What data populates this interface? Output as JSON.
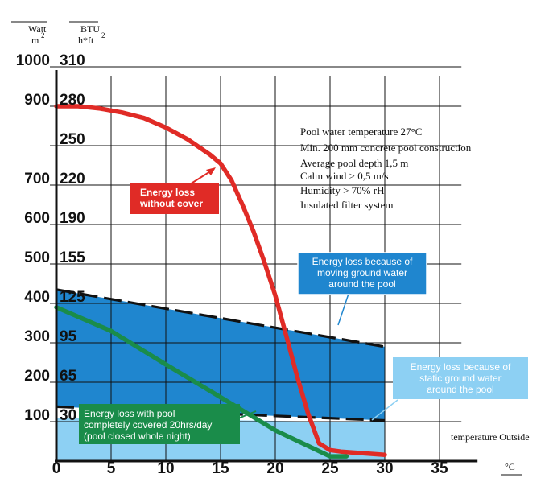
{
  "chart_data": {
    "type": "line",
    "xlabel": "temperature Outside",
    "x_unit": "°C",
    "watt_unit": {
      "top": "Watt",
      "bottom": "m",
      "sup": "2"
    },
    "btu_unit": {
      "top": "BTU",
      "bottom": "h*ft",
      "sup": "2"
    },
    "x_ticks": [
      "0",
      "5",
      "10",
      "15",
      "20",
      "25",
      "30",
      "35"
    ],
    "watt_ticks": [
      {
        "value": 1000,
        "label": "1000"
      },
      {
        "value": 900,
        "label": "900"
      },
      {
        "value": 700,
        "label": "700"
      },
      {
        "value": 600,
        "label": "600"
      },
      {
        "value": 500,
        "label": "500"
      },
      {
        "value": 400,
        "label": "400"
      },
      {
        "value": 300,
        "label": "300"
      },
      {
        "value": 200,
        "label": "200"
      },
      {
        "value": 100,
        "label": "100"
      }
    ],
    "btu_ticks": [
      {
        "value": 310,
        "label": "310"
      },
      {
        "value": 280,
        "label": "280"
      },
      {
        "value": 250,
        "label": "250"
      },
      {
        "value": 220,
        "label": "220"
      },
      {
        "value": 190,
        "label": "190"
      },
      {
        "value": 155,
        "label": "155"
      },
      {
        "value": 125,
        "label": "125"
      },
      {
        "value": 95,
        "label": "95"
      },
      {
        "value": 65,
        "label": "65"
      },
      {
        "value": 30,
        "label": "30"
      }
    ],
    "xlim": [
      0,
      37
    ],
    "ylim": [
      0,
      1000
    ],
    "grid": true,
    "series": [
      {
        "name": "Energy loss without cover",
        "color": "#e02b26",
        "x": [
          0,
          2,
          4,
          6,
          8,
          10,
          12,
          14,
          15,
          16,
          17,
          18,
          19,
          20,
          21,
          22,
          23,
          24,
          25,
          26,
          27,
          28,
          29,
          30
        ],
        "y": [
          900,
          900,
          894,
          884,
          870,
          846,
          816,
          778,
          755,
          712,
          650,
          583,
          505,
          420,
          318,
          214,
          120,
          45,
          28,
          24,
          22,
          20,
          18,
          16
        ]
      },
      {
        "name": "Energy loss with pool completely covered 20hrs/day (pool closed whole night)",
        "color": "#1a8c4a",
        "x": [
          0,
          5,
          10,
          15,
          20,
          25,
          26.5
        ],
        "y": [
          390,
          330,
          245,
          162,
          78,
          12,
          12
        ]
      }
    ],
    "regions": [
      {
        "name": "Energy loss because of moving ground water around the pool",
        "color": "#1f86cf",
        "upper": {
          "x": [
            0,
            30
          ],
          "y": [
            435,
            290
          ]
        },
        "lower": {
          "x": [
            0,
            30
          ],
          "y": [
            138,
            103
          ]
        }
      },
      {
        "name": "Energy loss because of static ground water around the pool",
        "color": "#8dd0f3",
        "upper": {
          "x": [
            0,
            30
          ],
          "y": [
            110,
            98
          ]
        },
        "lower": {
          "x": [
            0,
            30
          ],
          "y": [
            0,
            0
          ]
        }
      }
    ],
    "annotations": {
      "conditions": [
        "Pool water temperature 27°C",
        "Min. 200 mm concrete pool construction",
        "Average pool depth 1,5 m",
        "Calm wind > 0,5 m/s",
        "Humidity > 70% rH",
        "Insulated filter system"
      ],
      "red_label": [
        "Energy loss",
        "without cover"
      ],
      "blue_label": [
        "Energy loss because of",
        "moving ground water",
        "around the pool"
      ],
      "light_label": [
        "Energy loss because of",
        "static ground water",
        "around the pool"
      ],
      "green_label": [
        "Energy loss with pool",
        "completely covered  20hrs/day",
        "(pool closed whole night)"
      ]
    }
  }
}
